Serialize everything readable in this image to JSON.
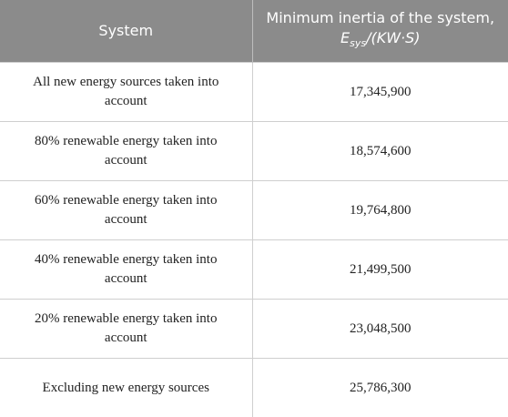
{
  "table": {
    "header": {
      "system": "System",
      "inertia": {
        "text": "Minimum inertia of the system, ",
        "symbol": "E",
        "subscript": "sys",
        "unit": "/(KW·S)"
      }
    },
    "rows": [
      [
        "All new energy sources taken into account",
        "17,345,900"
      ],
      [
        "80% renewable energy taken into account",
        "18,574,600"
      ],
      [
        "60% renewable energy taken into account",
        "19,764,800"
      ],
      [
        "40% renewable energy taken into account",
        "21,499,500"
      ],
      [
        "20% renewable energy taken into account",
        "23,048,500"
      ],
      [
        "Excluding new energy sources",
        "25,786,300"
      ]
    ]
  }
}
